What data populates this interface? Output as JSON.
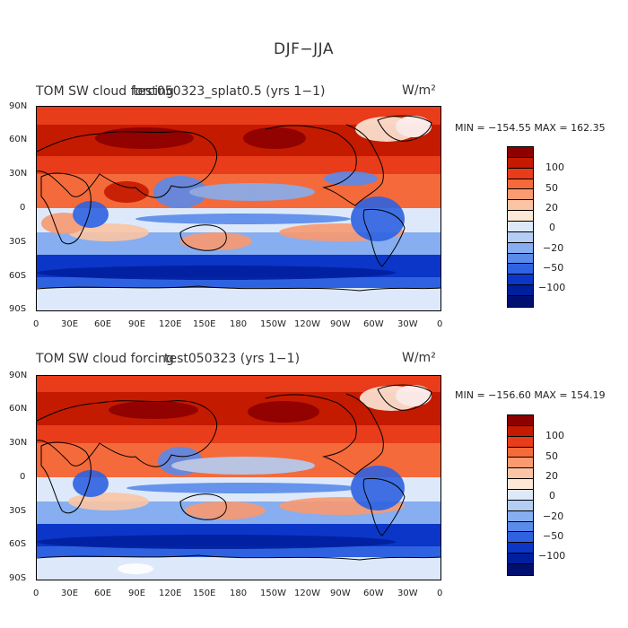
{
  "figure_title": "DJF−JJA",
  "panels": [
    {
      "title_left": "TOM SW cloud forcing",
      "title_overlap": "test050323_splat0.5 (yrs 1−1)",
      "units": "W/m²",
      "minmax": "MIN = −154.55  MAX = 162.35"
    },
    {
      "title_left": "TOM SW cloud forcing",
      "title_overlap": "test050323 (yrs 1−1)",
      "units": "W/m²",
      "minmax": "MIN = −156.60  MAX = 154.19"
    }
  ],
  "lat_ticks": [
    "90N",
    "60N",
    "30N",
    "0",
    "30S",
    "60S",
    "90S"
  ],
  "lon_ticks": [
    "0",
    "30E",
    "60E",
    "90E",
    "120E",
    "150E",
    "180",
    "150W",
    "120W",
    "90W",
    "60W",
    "30W",
    "0"
  ],
  "colorbar": {
    "labels": [
      "100",
      "50",
      "20",
      "0",
      "−20",
      "−50",
      "−100"
    ],
    "colors": [
      "#8c0000",
      "#c41a00",
      "#e83c1a",
      "#f56a3a",
      "#f99a70",
      "#fbc5a5",
      "#fde8d8",
      "#dde9fa",
      "#b3cdf5",
      "#86aef0",
      "#5a8aea",
      "#2f62e0",
      "#0b36c8",
      "#001f9e",
      "#000f70"
    ]
  },
  "chart_data": {
    "type": "heatmap",
    "title": "DJF−JJA",
    "variable": "TOM SW cloud forcing",
    "units": "W/m²",
    "x_ticks": [
      "0",
      "30E",
      "60E",
      "90E",
      "120E",
      "150E",
      "180",
      "150W",
      "120W",
      "90W",
      "60W",
      "30W",
      "0"
    ],
    "y_ticks": [
      "90N",
      "60N",
      "30N",
      "0",
      "30S",
      "60S",
      "90S"
    ],
    "xlim": [
      0,
      360
    ],
    "ylim": [
      -90,
      90
    ],
    "color_levels": [
      -100,
      -50,
      -20,
      0,
      20,
      50,
      100
    ],
    "panels": [
      {
        "case": "test050323_splat0.5 (yrs 1−1)",
        "min": -154.55,
        "max": 162.35
      },
      {
        "case": "test050323 (yrs 1−1)",
        "min": -156.6,
        "max": 154.19
      }
    ]
  }
}
